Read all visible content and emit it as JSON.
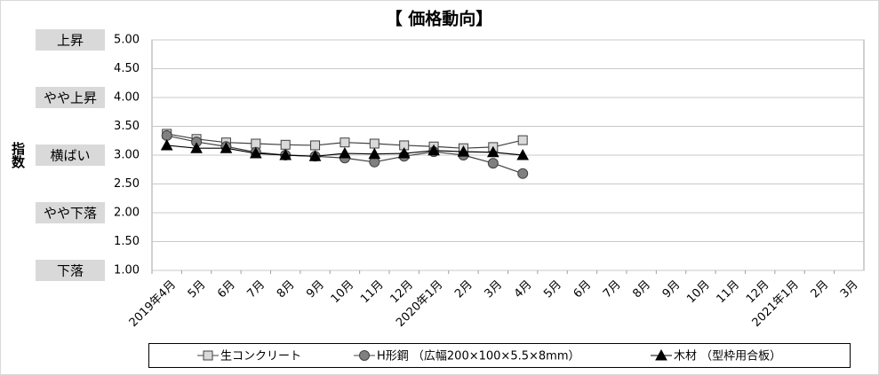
{
  "chart_data": {
    "type": "line",
    "title": "【 価格動向】",
    "y_label": "指数",
    "categories": [
      "2019年4月",
      "5月",
      "6月",
      "7月",
      "8月",
      "9月",
      "10月",
      "11月",
      "12月",
      "2020年1月",
      "2月",
      "3月",
      "4月",
      "5月",
      "6月",
      "7月",
      "8月",
      "9月",
      "10月",
      "11月",
      "12月",
      "2021年1月",
      "2月",
      "3月"
    ],
    "series": [
      {
        "name": "生コンクリート",
        "color": "#404040",
        "marker": "square",
        "marker_fill": "#d9d9d9",
        "values": [
          3.37,
          3.28,
          3.22,
          3.2,
          3.18,
          3.17,
          3.22,
          3.2,
          3.17,
          3.15,
          3.12,
          3.14,
          3.26,
          null,
          null,
          null,
          null,
          null,
          null,
          null,
          null,
          null,
          null,
          null
        ]
      },
      {
        "name": "H形鋼 （広幅200×100×5.5×8mm）",
        "color": "#404040",
        "marker": "circle",
        "marker_fill": "#808080",
        "values": [
          3.34,
          3.23,
          3.15,
          3.05,
          3.0,
          2.98,
          2.95,
          2.88,
          2.98,
          3.06,
          3.0,
          2.86,
          2.68,
          null,
          null,
          null,
          null,
          null,
          null,
          null,
          null,
          null,
          null,
          null
        ]
      },
      {
        "name": "木材 （型枠用合板）",
        "color": "#000000",
        "marker": "triangle",
        "marker_fill": "#000000",
        "values": [
          3.17,
          3.12,
          3.12,
          3.03,
          3.0,
          2.98,
          3.03,
          3.02,
          3.03,
          3.08,
          3.06,
          3.05,
          3.0,
          null,
          null,
          null,
          null,
          null,
          null,
          null,
          null,
          null,
          null,
          null
        ]
      }
    ],
    "ylim": [
      1,
      5
    ],
    "yticks": [
      {
        "value": 1,
        "label": "1.00"
      },
      {
        "value": 1.5,
        "label": "1.50"
      },
      {
        "value": 2,
        "label": "2.00"
      },
      {
        "value": 2.5,
        "label": "2.50"
      },
      {
        "value": 3,
        "label": "3.00"
      },
      {
        "value": 3.5,
        "label": "3.50"
      },
      {
        "value": 4,
        "label": "4.00"
      },
      {
        "value": 4.5,
        "label": "4.50"
      },
      {
        "value": 5,
        "label": "5.00"
      }
    ],
    "level_labels": [
      {
        "value": 5,
        "label": "上昇"
      },
      {
        "value": 4,
        "label": "やや上昇"
      },
      {
        "value": 3,
        "label": "横ばい"
      },
      {
        "value": 2,
        "label": "やや下落"
      },
      {
        "value": 1,
        "label": "下落"
      }
    ],
    "grid": true,
    "legend": "bottom"
  }
}
